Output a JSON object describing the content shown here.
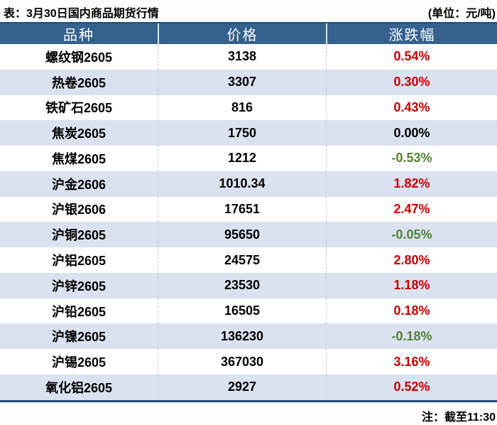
{
  "header": {
    "title": "表：3月30日国内商品期货行情",
    "unit_label": "(单位：元/吨)"
  },
  "footer": {
    "note": "注：截至11:30"
  },
  "colors": {
    "up": "#C00000",
    "down": "#538135",
    "flat": "#000000",
    "header_bg": "#35618F",
    "header_top_border": "#1F4E79",
    "alt_row_bg": "#DBE2EF",
    "bottom_rule": "#1F4E79"
  },
  "chart_data": {
    "type": "table",
    "title": "表：3月30日国内商品期货行情",
    "unit": "元/吨",
    "as_of": "11:30",
    "columns": [
      "品种",
      "价格",
      "涨跌幅"
    ],
    "rows": [
      {
        "variety": "螺纹钢2605",
        "price": "3138",
        "change": "0.54%",
        "trend": "up"
      },
      {
        "variety": "热卷2605",
        "price": "3307",
        "change": "0.30%",
        "trend": "up"
      },
      {
        "variety": "铁矿石2605",
        "price": "816",
        "change": "0.43%",
        "trend": "up"
      },
      {
        "variety": "焦炭2605",
        "price": "1750",
        "change": "0.00%",
        "trend": "flat"
      },
      {
        "variety": "焦煤2605",
        "price": "1212",
        "change": "-0.53%",
        "trend": "down"
      },
      {
        "variety": "沪金2606",
        "price": "1010.34",
        "change": "1.82%",
        "trend": "up"
      },
      {
        "variety": "沪银2606",
        "price": "17651",
        "change": "2.47%",
        "trend": "up"
      },
      {
        "variety": "沪铜2605",
        "price": "95650",
        "change": "-0.05%",
        "trend": "down"
      },
      {
        "variety": "沪铝2605",
        "price": "24575",
        "change": "2.80%",
        "trend": "up"
      },
      {
        "variety": "沪锌2605",
        "price": "23530",
        "change": "1.18%",
        "trend": "up"
      },
      {
        "variety": "沪铅2605",
        "price": "16505",
        "change": "0.18%",
        "trend": "up"
      },
      {
        "variety": "沪镍2605",
        "price": "136230",
        "change": "-0.18%",
        "trend": "down"
      },
      {
        "variety": "沪锡2605",
        "price": "367030",
        "change": "3.16%",
        "trend": "up"
      },
      {
        "variety": "氧化铝2605",
        "price": "2927",
        "change": "0.52%",
        "trend": "up"
      }
    ]
  }
}
